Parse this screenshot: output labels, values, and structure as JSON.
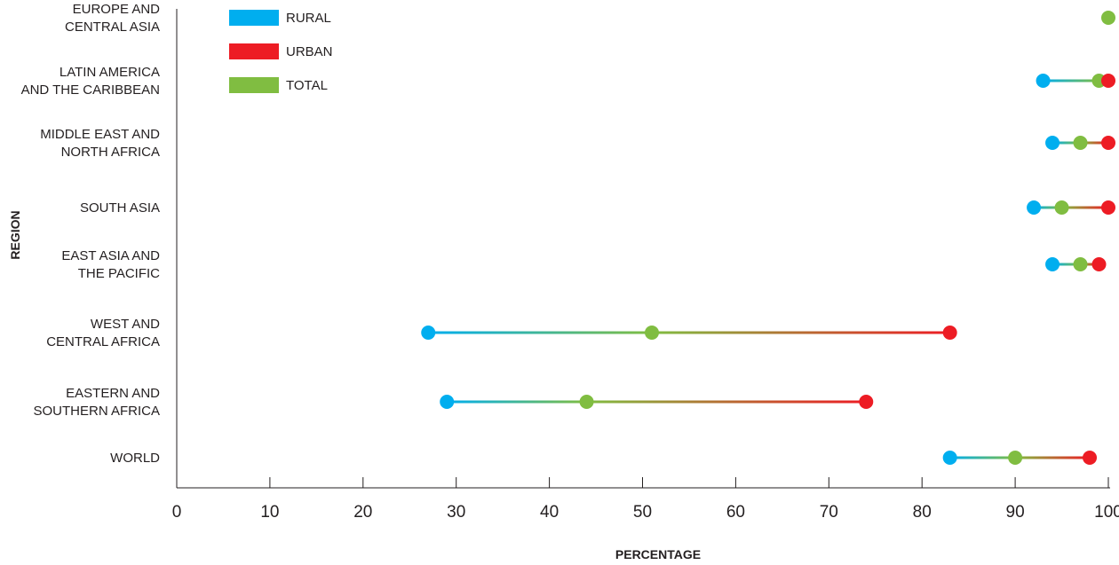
{
  "chart_data": {
    "type": "dumbbell",
    "title": "",
    "xlabel": "PERCENTAGE",
    "ylabel": "REGION",
    "xlim": [
      0,
      100
    ],
    "xticks": [
      0,
      10,
      20,
      30,
      40,
      50,
      60,
      70,
      80,
      90,
      100
    ],
    "grid": false,
    "legend_position": "top-left",
    "categories": [
      [
        "EUROPE AND",
        "CENTRAL ASIA"
      ],
      [
        "LATIN AMERICA",
        "AND THE CARIBBEAN"
      ],
      [
        "MIDDLE EAST AND",
        "NORTH AFRICA"
      ],
      [
        "SOUTH ASIA"
      ],
      [
        "EAST ASIA AND",
        "THE PACIFIC"
      ],
      [
        "WEST AND",
        "CENTRAL AFRICA"
      ],
      [
        "EASTERN AND",
        "SOUTHERN AFRICA"
      ],
      [
        "WORLD"
      ]
    ],
    "series": [
      {
        "name": "RURAL",
        "color": "#00aeef",
        "values": [
          null,
          93,
          94,
          92,
          94,
          27,
          29,
          83
        ]
      },
      {
        "name": "URBAN",
        "color": "#ed1c24",
        "values": [
          null,
          100,
          100,
          100,
          99,
          83,
          74,
          98
        ]
      },
      {
        "name": "TOTAL",
        "color": "#80bd41",
        "values": [
          100,
          99,
          97,
          95,
          97,
          51,
          44,
          90
        ]
      }
    ]
  }
}
